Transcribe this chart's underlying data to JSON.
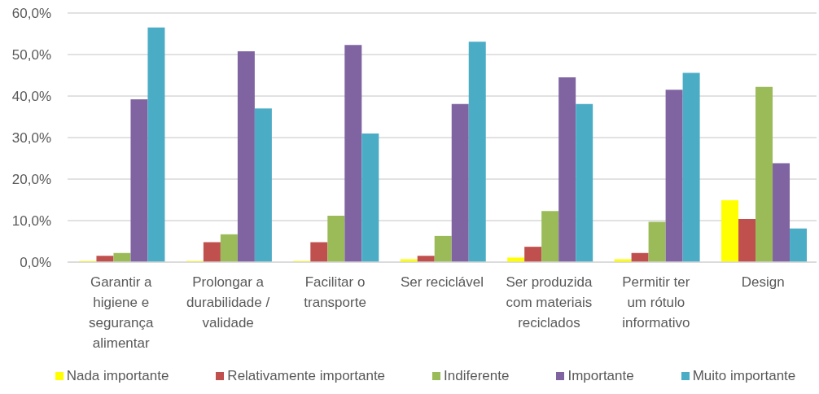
{
  "chart_data": {
    "type": "bar",
    "categories": [
      "Garantir a higiene e segurança alimentar",
      "Prolongar a durabilidade / validade",
      "Facilitar o transporte",
      "Ser reciclável",
      "Ser produzida com materiais reciclados",
      "Permitir ter um rótulo informativo",
      "Design"
    ],
    "series": [
      {
        "name": "Nada importante",
        "color": "#ffff00",
        "values": [
          0.3,
          0.3,
          0.3,
          0.7,
          1.1,
          0.7,
          14.9
        ]
      },
      {
        "name": "Relativamente importante",
        "color": "#c0504d",
        "values": [
          1.5,
          4.8,
          4.8,
          1.5,
          3.7,
          2.2,
          10.4
        ]
      },
      {
        "name": "Indiferente",
        "color": "#9bbb59",
        "values": [
          2.2,
          6.7,
          11.2,
          6.3,
          12.3,
          9.7,
          42.2
        ]
      },
      {
        "name": "Importante",
        "color": "#8064a2",
        "values": [
          39.2,
          50.8,
          52.3,
          38.1,
          44.5,
          41.5,
          23.8
        ]
      },
      {
        "name": "Muito importante",
        "color": "#4bacc6",
        "values": [
          56.5,
          37.0,
          31.0,
          53.1,
          38.1,
          45.6,
          8.1
        ]
      }
    ],
    "ylim": [
      0,
      60
    ],
    "yticks": [
      {
        "value": 0,
        "label": "0,0%"
      },
      {
        "value": 10,
        "label": "10,0%"
      },
      {
        "value": 20,
        "label": "20,0%"
      },
      {
        "value": 30,
        "label": "30,0%"
      },
      {
        "value": 40,
        "label": "40,0%"
      },
      {
        "value": 50,
        "label": "50,0%"
      },
      {
        "value": 60,
        "label": "60,0%"
      }
    ],
    "grid": "y",
    "legend": "bottom"
  }
}
